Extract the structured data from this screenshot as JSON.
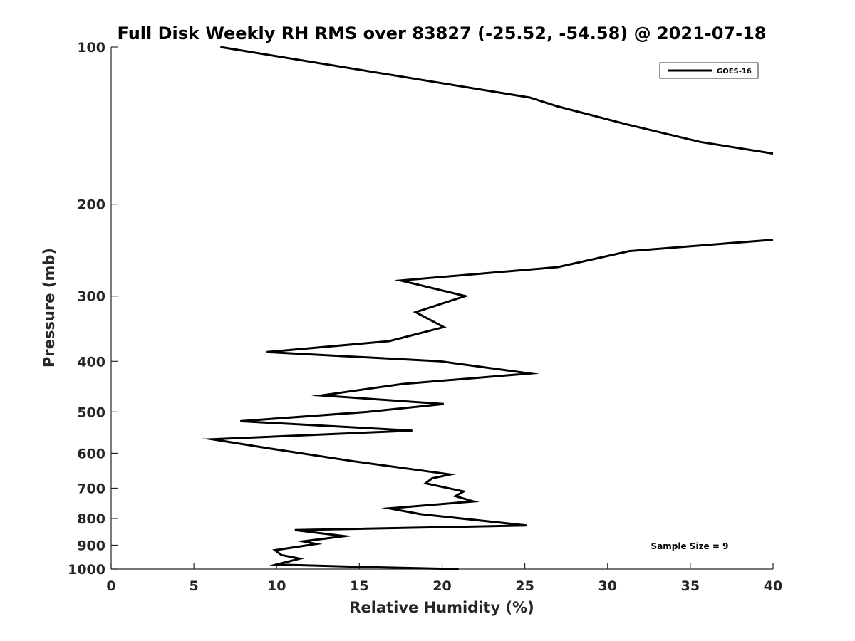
{
  "chart_data": {
    "type": "line",
    "title": "Full Disk Weekly RH RMS over 83827 (-25.52, -54.58) @ 2021-07-18",
    "xlabel": "Relative Humidity (%)",
    "ylabel": "Pressure (mb)",
    "xlim": [
      0,
      40
    ],
    "ylim": [
      100,
      1000
    ],
    "y_scale": "log",
    "y_reversed": true,
    "grid": false,
    "legend_position": "top-right",
    "x_ticks": [
      0,
      5,
      10,
      15,
      20,
      25,
      30,
      35,
      40
    ],
    "y_ticks": [
      100,
      200,
      300,
      400,
      500,
      600,
      700,
      800,
      900,
      1000
    ],
    "annotation": "Sample Size = 9",
    "series": [
      {
        "name": "GOES-16",
        "color": "#000000",
        "segments": [
          [
            {
              "x": 6.6,
              "y": 100
            },
            {
              "x": 25.3,
              "y": 125
            },
            {
              "x": 27.0,
              "y": 130
            },
            {
              "x": 31.3,
              "y": 141
            },
            {
              "x": 35.6,
              "y": 152
            },
            {
              "x": 40.0,
              "y": 160
            }
          ],
          [
            {
              "x": 40.0,
              "y": 234
            },
            {
              "x": 31.3,
              "y": 246
            },
            {
              "x": 27.0,
              "y": 264
            },
            {
              "x": 17.5,
              "y": 280
            },
            {
              "x": 21.4,
              "y": 300
            },
            {
              "x": 18.4,
              "y": 322
            },
            {
              "x": 20.1,
              "y": 344
            },
            {
              "x": 16.8,
              "y": 366
            },
            {
              "x": 9.4,
              "y": 384
            },
            {
              "x": 19.9,
              "y": 400
            },
            {
              "x": 25.3,
              "y": 422
            },
            {
              "x": 17.6,
              "y": 442
            },
            {
              "x": 12.7,
              "y": 465
            },
            {
              "x": 20.1,
              "y": 483
            },
            {
              "x": 15.5,
              "y": 500
            },
            {
              "x": 7.8,
              "y": 521
            },
            {
              "x": 18.2,
              "y": 543
            },
            {
              "x": 6.1,
              "y": 564
            },
            {
              "x": 9.5,
              "y": 587
            },
            {
              "x": 14.7,
              "y": 622
            },
            {
              "x": 20.5,
              "y": 659
            },
            {
              "x": 19.4,
              "y": 670
            },
            {
              "x": 19.0,
              "y": 685
            },
            {
              "x": 21.3,
              "y": 710
            },
            {
              "x": 20.8,
              "y": 725
            },
            {
              "x": 21.9,
              "y": 742
            },
            {
              "x": 16.8,
              "y": 765
            },
            {
              "x": 18.7,
              "y": 785
            },
            {
              "x": 25.1,
              "y": 825
            },
            {
              "x": 11.1,
              "y": 842
            },
            {
              "x": 14.1,
              "y": 865
            },
            {
              "x": 11.6,
              "y": 885
            },
            {
              "x": 12.4,
              "y": 895
            },
            {
              "x": 9.9,
              "y": 920
            },
            {
              "x": 10.3,
              "y": 940
            },
            {
              "x": 11.4,
              "y": 955
            },
            {
              "x": 10.0,
              "y": 980
            },
            {
              "x": 14.8,
              "y": 990
            },
            {
              "x": 21.0,
              "y": 1000
            }
          ]
        ]
      }
    ]
  }
}
